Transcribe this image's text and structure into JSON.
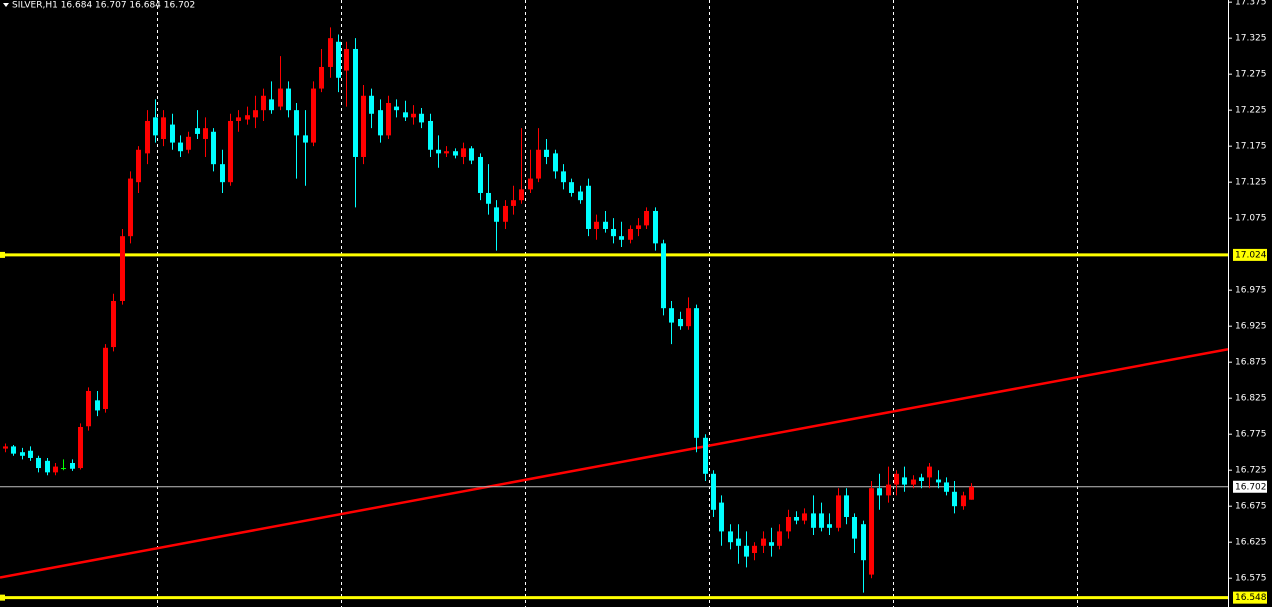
{
  "chart_data": {
    "type": "candlestick",
    "title": "SILVER,H1 16.684 16.707 16.684 16.702",
    "ylim": [
      16.535,
      17.378
    ],
    "yticks": [
      17.375,
      17.325,
      17.275,
      17.225,
      17.175,
      17.125,
      17.075,
      16.975,
      16.925,
      16.875,
      16.825,
      16.775,
      16.725,
      16.675,
      16.625,
      16.575
    ],
    "colors": {
      "up": "#ff0000",
      "down": "#00ffff",
      "doji": "#00ff00"
    },
    "open": [
      16.755,
      16.758,
      16.75,
      16.752,
      16.742,
      16.738,
      16.722,
      16.728,
      16.735,
      16.728,
      16.786,
      16.822,
      16.81,
      16.896,
      16.96,
      17.05,
      17.125,
      17.165,
      17.215,
      17.185,
      17.205,
      17.18,
      17.17,
      17.2,
      17.185,
      17.195,
      17.15,
      17.125,
      17.21,
      17.212,
      17.215,
      17.225,
      17.24,
      17.23,
      17.255,
      17.225,
      17.19,
      17.18,
      17.255,
      17.285,
      17.32,
      17.28,
      17.31,
      17.16,
      17.245,
      17.225,
      17.19,
      17.23,
      17.222,
      17.215,
      17.22,
      17.21,
      17.17,
      17.165,
      17.168,
      17.16,
      17.172,
      17.16,
      17.11,
      17.09,
      17.07,
      17.092,
      17.1,
      17.115,
      17.13,
      17.17,
      17.165,
      17.14,
      17.125,
      17.112,
      17.12,
      17.06,
      17.07,
      17.06,
      17.05,
      17.045,
      17.06,
      17.065,
      17.085,
      17.04,
      16.95,
      16.935,
      16.925,
      16.95,
      16.77,
      16.72,
      16.68,
      16.64,
      16.63,
      16.62,
      16.61,
      16.62,
      16.625,
      16.62,
      16.64,
      16.66,
      16.655,
      16.665,
      16.665,
      16.65,
      16.645,
      16.69,
      16.66,
      16.65,
      16.58,
      16.7,
      16.69,
      16.705,
      16.715,
      16.705,
      16.715,
      16.715,
      16.712,
      16.708,
      16.695,
      16.675,
      16.684
    ],
    "high": [
      16.762,
      16.76,
      16.756,
      16.758,
      16.745,
      16.742,
      16.735,
      16.74,
      16.74,
      16.79,
      16.84,
      16.835,
      16.9,
      16.97,
      17.06,
      17.14,
      17.175,
      17.225,
      17.24,
      17.225,
      17.22,
      17.19,
      17.195,
      17.225,
      17.215,
      17.2,
      17.17,
      17.22,
      17.225,
      17.23,
      17.245,
      17.255,
      17.265,
      17.3,
      17.265,
      17.235,
      17.225,
      17.265,
      17.31,
      17.34,
      17.33,
      17.32,
      17.325,
      17.26,
      17.255,
      17.24,
      17.245,
      17.24,
      17.238,
      17.232,
      17.228,
      17.22,
      17.19,
      17.175,
      17.172,
      17.18,
      17.175,
      17.165,
      17.15,
      17.1,
      17.1,
      17.12,
      17.2,
      17.17,
      17.2,
      17.185,
      17.17,
      17.15,
      17.13,
      17.12,
      17.13,
      17.08,
      17.085,
      17.075,
      17.07,
      17.065,
      17.075,
      17.09,
      17.09,
      17.045,
      16.96,
      16.945,
      16.965,
      16.955,
      16.775,
      16.725,
      16.69,
      16.65,
      16.65,
      16.64,
      16.625,
      16.64,
      16.645,
      16.65,
      16.67,
      16.668,
      16.672,
      16.69,
      16.68,
      16.665,
      16.7,
      16.7,
      16.665,
      16.655,
      16.71,
      16.72,
      16.73,
      16.725,
      16.73,
      16.718,
      16.72,
      16.735,
      16.725,
      16.715,
      16.71,
      16.695,
      16.707
    ],
    "low": [
      16.75,
      16.745,
      16.74,
      16.738,
      16.722,
      16.718,
      16.718,
      16.725,
      16.724,
      16.726,
      16.78,
      16.8,
      16.805,
      16.89,
      16.955,
      17.04,
      17.11,
      17.15,
      17.18,
      17.175,
      17.17,
      17.16,
      17.165,
      17.185,
      17.16,
      17.14,
      17.11,
      17.12,
      17.195,
      17.205,
      17.2,
      17.21,
      17.22,
      17.225,
      17.215,
      17.13,
      17.12,
      17.175,
      17.25,
      17.27,
      17.25,
      17.23,
      17.09,
      17.15,
      17.2,
      17.18,
      17.185,
      17.215,
      17.21,
      17.205,
      17.2,
      17.16,
      17.145,
      17.16,
      17.158,
      17.15,
      17.15,
      17.1,
      17.08,
      17.03,
      17.06,
      17.08,
      17.095,
      17.11,
      17.125,
      17.15,
      17.13,
      17.115,
      17.105,
      17.095,
      17.05,
      17.045,
      17.055,
      17.04,
      17.035,
      17.04,
      17.05,
      17.06,
      17.03,
      16.94,
      16.9,
      16.92,
      16.92,
      16.75,
      16.71,
      16.66,
      16.62,
      16.615,
      16.595,
      16.59,
      16.6,
      16.61,
      16.605,
      16.615,
      16.63,
      16.65,
      16.65,
      16.635,
      16.64,
      16.635,
      16.64,
      16.65,
      16.61,
      16.555,
      16.575,
      16.67,
      16.68,
      16.69,
      16.695,
      16.7,
      16.7,
      16.7,
      16.7,
      16.69,
      16.665,
      16.67,
      16.684
    ],
    "close": [
      16.758,
      16.748,
      16.745,
      16.742,
      16.728,
      16.722,
      16.73,
      16.728,
      16.727,
      16.785,
      16.835,
      16.808,
      16.895,
      16.96,
      17.05,
      17.13,
      17.17,
      17.21,
      17.19,
      17.215,
      17.18,
      17.168,
      17.188,
      17.192,
      17.2,
      17.15,
      17.125,
      17.21,
      17.215,
      17.218,
      17.225,
      17.245,
      17.225,
      17.255,
      17.225,
      17.19,
      17.18,
      17.255,
      17.285,
      17.325,
      17.27,
      17.31,
      17.16,
      17.245,
      17.22,
      17.19,
      17.235,
      17.225,
      17.215,
      17.22,
      17.208,
      17.17,
      17.165,
      17.168,
      17.162,
      17.172,
      17.155,
      17.11,
      17.095,
      17.07,
      17.092,
      17.1,
      17.115,
      17.13,
      17.17,
      17.16,
      17.14,
      17.125,
      17.11,
      17.1,
      17.06,
      17.07,
      17.06,
      17.05,
      17.045,
      17.06,
      17.065,
      17.085,
      17.04,
      16.95,
      16.93,
      16.925,
      16.95,
      16.77,
      16.72,
      16.67,
      16.64,
      16.625,
      16.62,
      16.605,
      16.62,
      16.63,
      16.62,
      16.64,
      16.66,
      16.655,
      16.665,
      16.645,
      16.645,
      16.645,
      16.69,
      16.66,
      16.63,
      16.6,
      16.7,
      16.69,
      16.705,
      16.72,
      16.705,
      16.712,
      16.71,
      16.73,
      16.708,
      16.695,
      16.675,
      16.69,
      16.702
    ],
    "levels": [
      {
        "value": 17.024,
        "color": "#ffff00"
      },
      {
        "value": 16.702,
        "color": "#c0c0c0"
      },
      {
        "value": 16.548,
        "color": "#ffff00"
      }
    ],
    "trendline": {
      "start": 16.576,
      "end": 16.893,
      "color": "#ff0000"
    }
  }
}
